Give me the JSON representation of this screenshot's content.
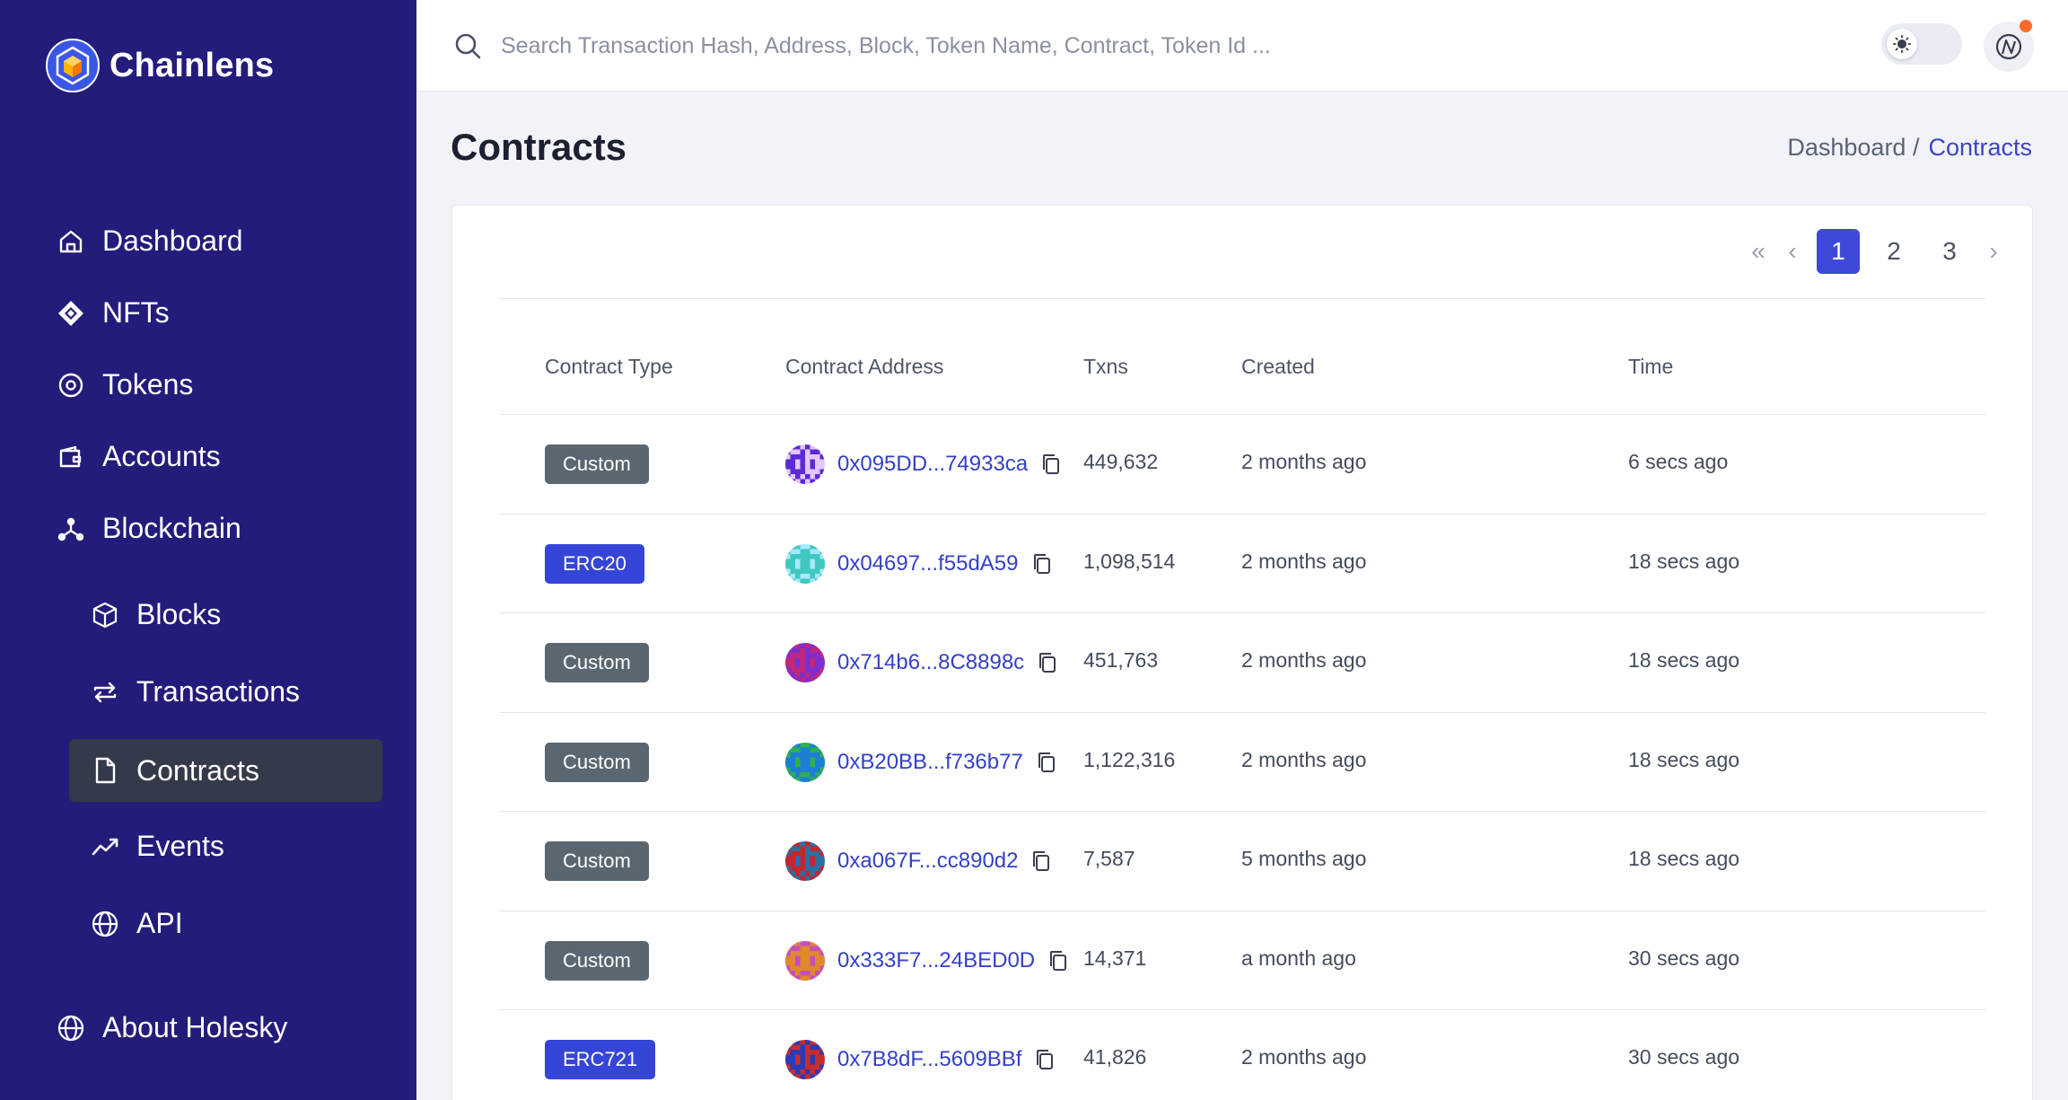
{
  "brand": {
    "name": "Chainlens"
  },
  "sidebar": {
    "items": [
      {
        "label": "Dashboard",
        "icon": "home-icon"
      },
      {
        "label": "NFTs",
        "icon": "nft-icon"
      },
      {
        "label": "Tokens",
        "icon": "token-icon"
      },
      {
        "label": "Accounts",
        "icon": "wallet-icon"
      },
      {
        "label": "Blockchain",
        "icon": "network-icon"
      }
    ],
    "sub_items": [
      {
        "label": "Blocks",
        "icon": "cube-icon"
      },
      {
        "label": "Transactions",
        "icon": "transfer-icon"
      },
      {
        "label": "Contracts",
        "icon": "file-icon",
        "active": true
      },
      {
        "label": "Events",
        "icon": "chart-line-icon"
      },
      {
        "label": "API",
        "icon": "globe-icon"
      }
    ],
    "footer": {
      "label": "About Holesky",
      "icon": "globe-icon"
    }
  },
  "search": {
    "placeholder": "Search Transaction Hash, Address, Block, Token Name, Contract, Token Id ..."
  },
  "page": {
    "title": "Contracts"
  },
  "breadcrumb": {
    "parent": "Dashboard /",
    "current": "Contracts"
  },
  "pagination": {
    "pages": [
      "1",
      "2",
      "3"
    ],
    "current": "1"
  },
  "table": {
    "headers": {
      "type": "Contract Type",
      "address": "Contract Address",
      "txns": "Txns",
      "created": "Created",
      "time": "Time"
    },
    "rows": [
      {
        "type": "Custom",
        "address": "0x095DD...74933ca",
        "txns": "449,632",
        "created": "2 months ago",
        "time": "6 secs ago",
        "avatar": [
          "#5b2bd6",
          "#e3c6ff"
        ]
      },
      {
        "type": "ERC20",
        "address": "0x04697...f55dA59",
        "txns": "1,098,514",
        "created": "2 months ago",
        "time": "18 secs ago",
        "avatar": [
          "#3ec8c0",
          "#a7e7ff"
        ]
      },
      {
        "type": "Custom",
        "address": "0x714b6...8C8898c",
        "txns": "451,763",
        "created": "2 months ago",
        "time": "18 secs ago",
        "avatar": [
          "#c2267b",
          "#7b2fd0"
        ]
      },
      {
        "type": "Custom",
        "address": "0xB20BB...f736b77",
        "txns": "1,122,316",
        "created": "2 months ago",
        "time": "18 secs ago",
        "avatar": [
          "#1b7fd6",
          "#2eb04a"
        ]
      },
      {
        "type": "Custom",
        "address": "0xa067F...cc890d2",
        "txns": "7,587",
        "created": "5 months ago",
        "time": "18 secs ago",
        "avatar": [
          "#c3262f",
          "#2b6ea0"
        ]
      },
      {
        "type": "Custom",
        "address": "0x333F7...24BED0D",
        "txns": "14,371",
        "created": "a month ago",
        "time": "30 secs ago",
        "avatar": [
          "#e0882a",
          "#c64cc2"
        ]
      },
      {
        "type": "ERC721",
        "address": "0x7B8dF...5609BBf",
        "txns": "41,826",
        "created": "2 months ago",
        "time": "30 secs ago",
        "avatar": [
          "#2a3ab8",
          "#c92c2c"
        ]
      }
    ]
  }
}
